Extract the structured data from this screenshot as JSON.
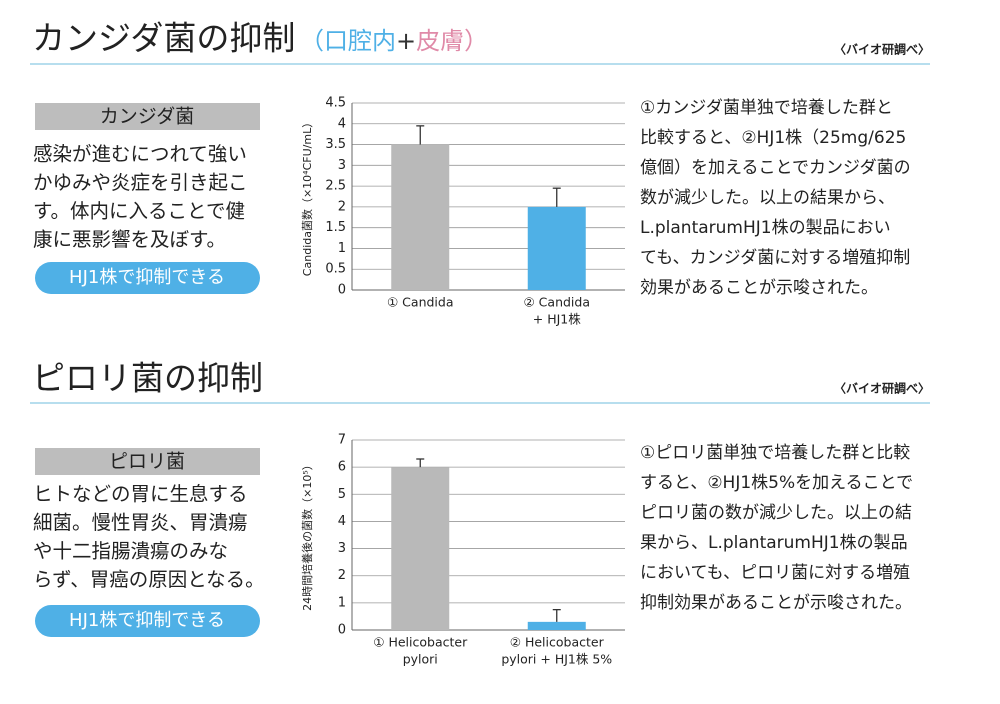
{
  "sections": [
    {
      "title": "カンジダ菌の抑制",
      "subtitle": [
        "（",
        "口腔内",
        "+",
        "皮膚",
        "）"
      ],
      "source": "〈バイオ研調べ〉",
      "label": "カンジダ菌",
      "description": [
        "感染が進むにつれて強い",
        "かゆみや炎症を引き起こ",
        "す。体内に入ることで健",
        "康に悪影響を及ぼす。"
      ],
      "button": "HJ1株で抑制できる",
      "chart": {
        "type": "bar",
        "ylabel": "Candida菌数（×10⁴CFU/mL）",
        "categories": [
          [
            "① Candida"
          ],
          [
            "② Candida",
            "+ HJ1株"
          ]
        ],
        "values": [
          3.5,
          2
        ],
        "errors": [
          0.45,
          0.45
        ],
        "colors": [
          "#b9b9b9",
          "#4fb0e6"
        ],
        "ylim": [
          0,
          4.5
        ],
        "yticks": [
          0,
          0.5,
          1,
          1.5,
          2,
          2.5,
          3,
          3.5,
          4,
          4.5
        ],
        "grid": true
      },
      "text": [
        "①カンジダ菌単独で培養した群と",
        "比較すると、②HJ1株（25mg/625",
        "億個）を加えることでカンジダ菌の",
        "数が減少した。以上の結果から、",
        "L.plantarumHJ1株の製品におい",
        "ても、カンジダ菌に対する増殖抑制",
        "効果があることが示唆された。"
      ]
    },
    {
      "title": "ピロリ菌の抑制",
      "subtitle": [],
      "source": "〈バイオ研調べ〉",
      "label": "ピロリ菌",
      "description": [
        "ヒトなどの胃に生息する",
        "細菌。慢性胃炎、胃潰瘍",
        "や十二指腸潰瘍のみな",
        "らず、胃癌の原因となる。"
      ],
      "button": "HJ1株で抑制できる",
      "chart": {
        "type": "bar",
        "ylabel": "24時間培養後の菌数（×10⁵）",
        "categories": [
          [
            "① Helicobacter",
            "pylori"
          ],
          [
            "② Helicobacter",
            "pylori + HJ1株 5%"
          ]
        ],
        "values": [
          6,
          0.3
        ],
        "errors": [
          0.3,
          0.45
        ],
        "colors": [
          "#b9b9b9",
          "#4fb0e6"
        ],
        "ylim": [
          0,
          7
        ],
        "yticks": [
          0,
          1,
          2,
          3,
          4,
          5,
          6,
          7
        ],
        "grid": true
      },
      "text": [
        "①ピロリ菌単独で培養した群と比較",
        "すると、②HJ1株5%を加えることで",
        "ピロリ菌の数が減少した。以上の結",
        "果から、L.plantarumHJ1株の製品",
        "においても、ピロリ菌に対する増殖",
        "抑制効果があることが示唆された。"
      ]
    }
  ]
}
